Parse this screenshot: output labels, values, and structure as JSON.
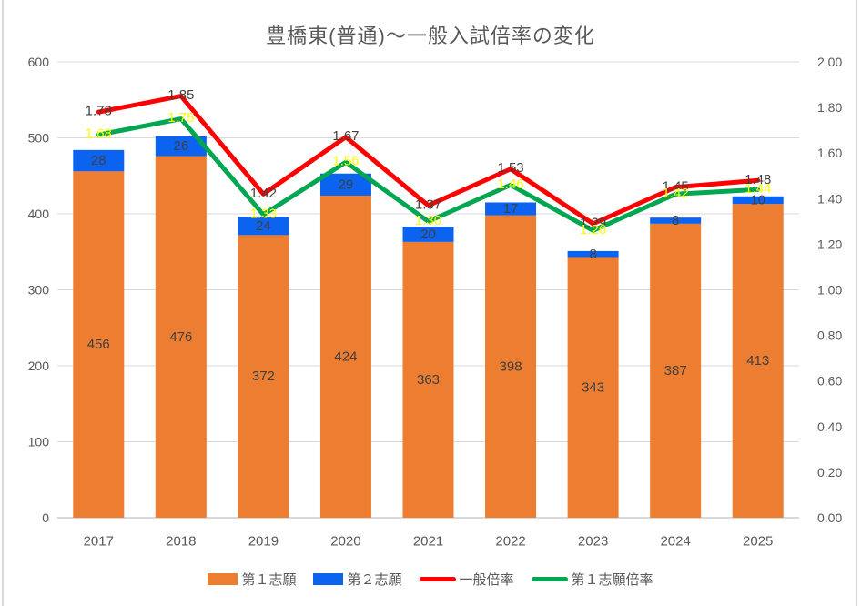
{
  "title": "豊橋東(普通)～一般入試倍率の変化",
  "colors": {
    "grid": "#d9d9d9",
    "axis_text": "#595959",
    "label_dark": "#404040",
    "bar_first": "#ED7D31",
    "bar_second": "#0B63F0",
    "line_general": "#FF0000",
    "line_first_choice": "#00A651",
    "label_yellow": "#FFFF00"
  },
  "chart_data": {
    "type": "combo-stacked-bar-line",
    "title": "豊橋東(普通)～一般入試倍率の変化",
    "categories": [
      "2017",
      "2018",
      "2019",
      "2020",
      "2021",
      "2022",
      "2023",
      "2024",
      "2025"
    ],
    "series": [
      {
        "name": "第１志願",
        "type": "bar",
        "axis": "left",
        "color": "#ED7D31",
        "label_color": "#404040",
        "values": [
          456,
          476,
          372,
          424,
          363,
          398,
          343,
          387,
          413
        ]
      },
      {
        "name": "第２志願",
        "type": "bar",
        "axis": "left",
        "color": "#0B63F0",
        "label_color": "#404040",
        "values": [
          28,
          26,
          24,
          29,
          20,
          17,
          8,
          8,
          10
        ]
      },
      {
        "name": "一般倍率",
        "type": "line",
        "axis": "right",
        "color": "#FF0000",
        "label_color": "#404040",
        "values": [
          1.78,
          1.85,
          1.42,
          1.67,
          1.37,
          1.53,
          1.29,
          1.45,
          1.48
        ],
        "labels": [
          "1.78",
          "1.85",
          "1.42",
          "1.67",
          "1.37",
          "1.53",
          "1.29",
          "1.45",
          "1.48"
        ]
      },
      {
        "name": "第１志願倍率",
        "type": "line",
        "axis": "right",
        "color": "#00A651",
        "label_color": "#FFFF00",
        "values": [
          1.68,
          1.75,
          1.33,
          1.56,
          1.3,
          1.46,
          1.26,
          1.42,
          1.44
        ],
        "labels": [
          "1.68",
          "1.75",
          "1.33",
          "1.56",
          "1.30",
          "1.46",
          "1.26",
          "1.42",
          "1.44"
        ]
      }
    ],
    "left_axis": {
      "min": 0,
      "max": 600,
      "step": 100,
      "ticks": [
        "0",
        "100",
        "200",
        "300",
        "400",
        "500",
        "600"
      ]
    },
    "right_axis": {
      "min": 0,
      "max": 2,
      "step": 0.2,
      "ticks": [
        "0.00",
        "0.20",
        "0.40",
        "0.60",
        "0.80",
        "1.00",
        "1.20",
        "1.40",
        "1.60",
        "1.80",
        "2.00"
      ]
    },
    "grid": "horizontal",
    "legend_position": "bottom"
  }
}
